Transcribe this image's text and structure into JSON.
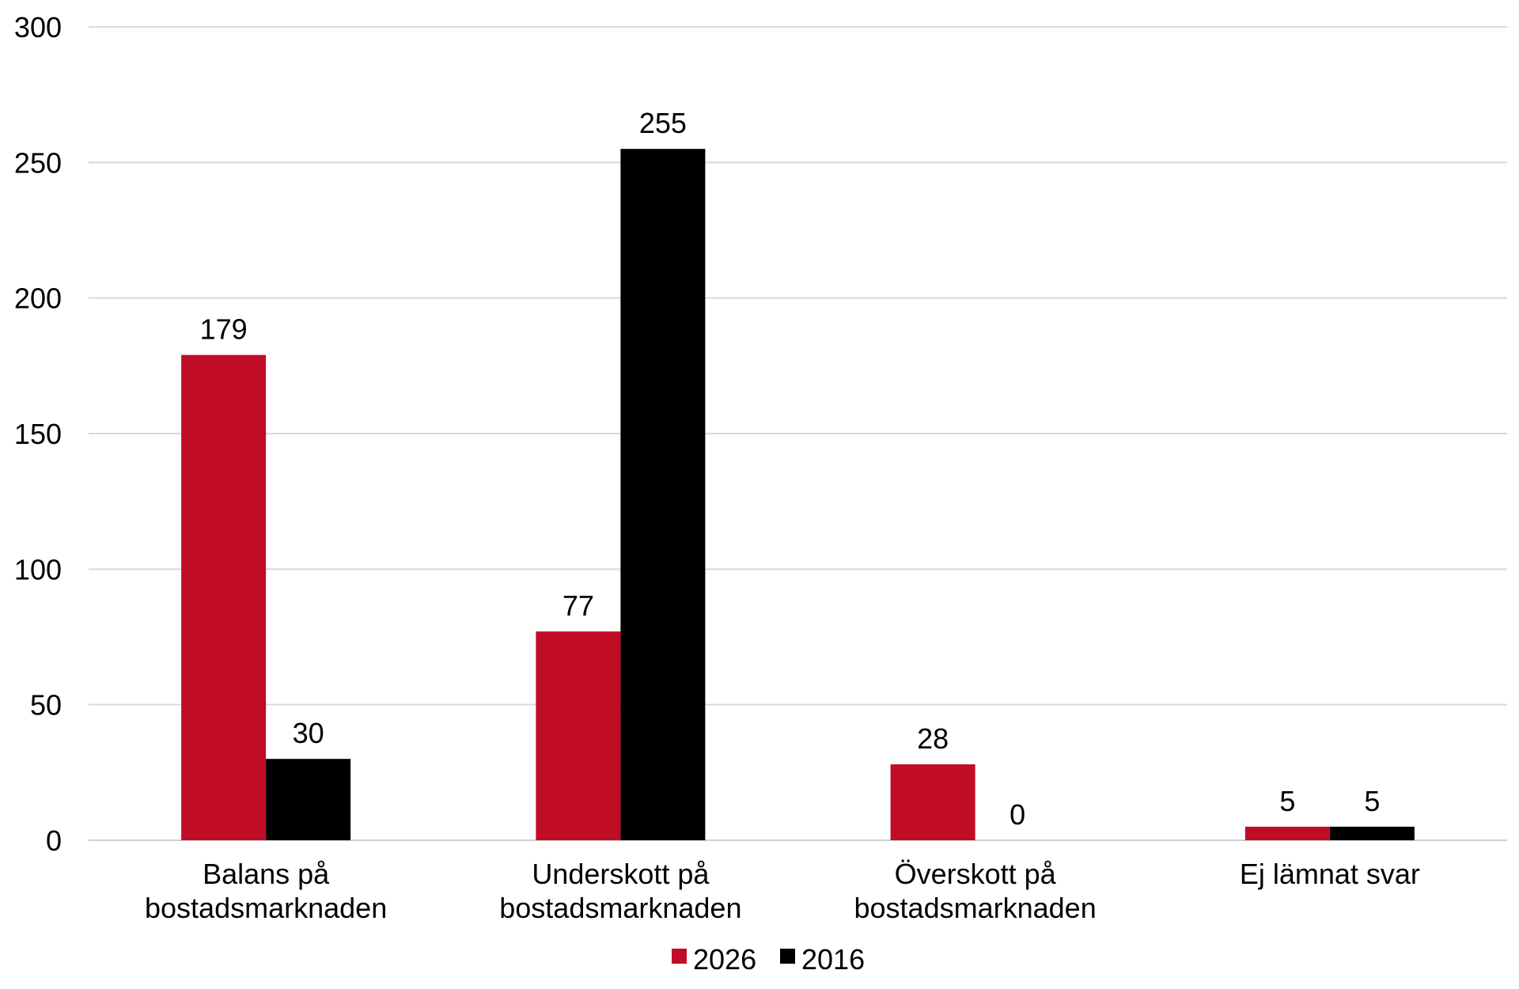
{
  "chart_data": {
    "type": "bar",
    "categories": [
      [
        "Balans på",
        "bostadsmarknaden"
      ],
      [
        "Underskott på",
        "bostadsmarknaden"
      ],
      [
        "Överskott på",
        "bostadsmarknaden"
      ],
      [
        "Ej lämnat svar"
      ]
    ],
    "series": [
      {
        "name": "2026",
        "color": "#C00C25",
        "values": [
          179,
          77,
          28,
          5
        ]
      },
      {
        "name": "2016",
        "color": "#000000",
        "values": [
          30,
          255,
          0,
          5
        ]
      }
    ],
    "title": "",
    "xlabel": "",
    "ylabel": "",
    "ylim": [
      0,
      300
    ],
    "yticks": [
      0,
      50,
      100,
      150,
      200,
      250,
      300
    ],
    "grid": true,
    "legend": "bottom",
    "data_labels": true
  }
}
